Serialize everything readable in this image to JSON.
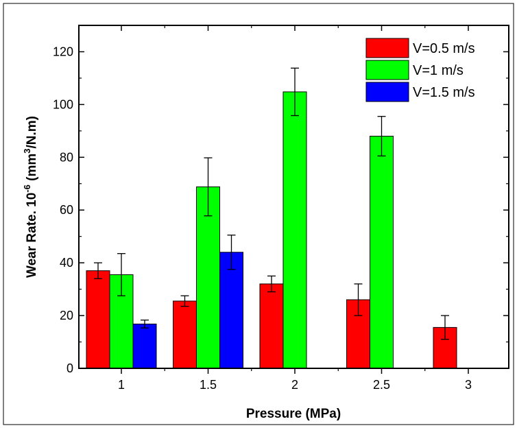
{
  "chart_data": {
    "type": "bar",
    "xlabel": "Pressure (MPa)",
    "ylabel": {
      "prefix": "Wear Rate. 10",
      "exponent": "-6",
      "unit_open": " (mm",
      "unit_exp": "3",
      "unit_close": "/N.m)"
    },
    "categories": [
      "1",
      "1.5",
      "2",
      "2.5",
      "3"
    ],
    "ylim": [
      0,
      130
    ],
    "yticks": [
      0,
      20,
      40,
      60,
      80,
      100,
      120
    ],
    "grid": false,
    "legend_position": "top-right",
    "series": [
      {
        "name": "V=0.5 m/s",
        "color": "#ff0000",
        "values": [
          37,
          25.5,
          32,
          26,
          15.5
        ],
        "errors": [
          3,
          2,
          3,
          6,
          4.5
        ]
      },
      {
        "name": "V=1 m/s",
        "color": "#00ff00",
        "values": [
          35.5,
          68.8,
          104.8,
          88,
          null
        ],
        "errors": [
          8,
          11,
          9,
          7.5,
          null
        ]
      },
      {
        "name": "V=1.5 m/s",
        "color": "#0000ff",
        "values": [
          16.8,
          44,
          null,
          null,
          null
        ],
        "errors": [
          1.5,
          6.5,
          null,
          null,
          null
        ]
      }
    ]
  }
}
